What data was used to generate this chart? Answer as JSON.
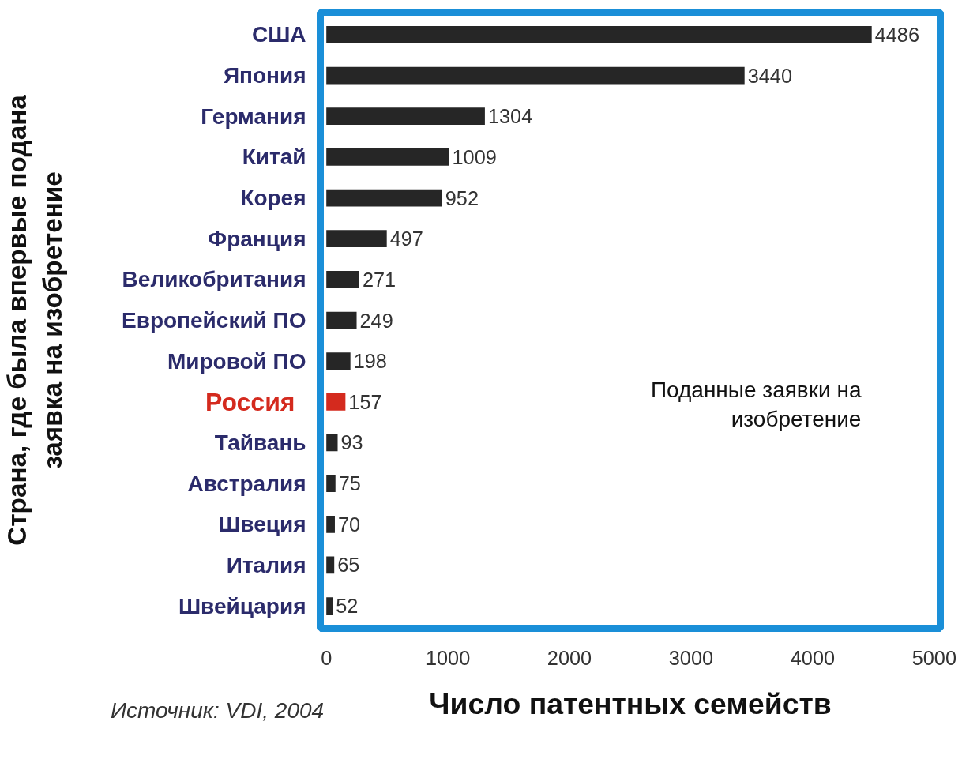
{
  "chart_data": {
    "type": "bar",
    "orientation": "horizontal",
    "categories": [
      "США",
      "Япония",
      "Германия",
      "Китай",
      "Корея",
      "Франция",
      "Великобритания",
      "Европейский ПО",
      "Мировой ПО",
      "Россия",
      "Тайвань",
      "Австралия",
      "Швеция",
      "Италия",
      "Швейцария"
    ],
    "values": [
      4486,
      3440,
      1304,
      1009,
      952,
      497,
      271,
      249,
      198,
      157,
      93,
      75,
      70,
      65,
      52
    ],
    "color": "#262626",
    "colors": [
      "#262626",
      "#262626",
      "#262626",
      "#262626",
      "#262626",
      "#262626",
      "#262626",
      "#262626",
      "#262626",
      "#d42a1e",
      "#262626",
      "#262626",
      "#262626",
      "#262626",
      "#262626"
    ],
    "data_labels": true,
    "xlim": [
      -50,
      5050
    ],
    "xticks": [
      0,
      1000,
      2000,
      3000,
      4000,
      5000
    ],
    "xlabel": "Число патентных семейств",
    "ylabel": "Страна, где была впервые подана\nзаявка на изобретение",
    "grid": false,
    "annotations": [
      "Поданные заявки на\nизобретение",
      "Источник: VDI, 2004"
    ]
  }
}
